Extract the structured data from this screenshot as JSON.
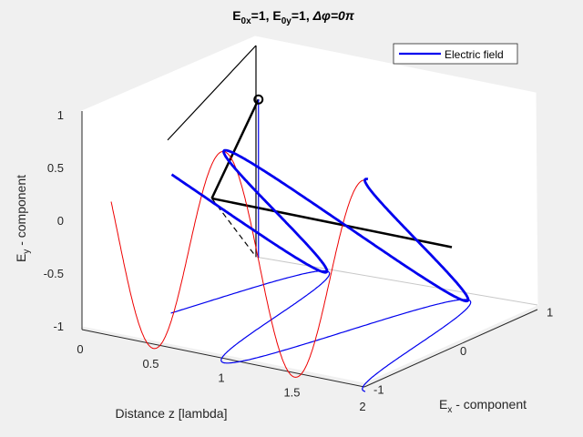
{
  "chart_data": {
    "type": "line",
    "projection": "3d",
    "title_parts": {
      "e0x": "E",
      "e0x_sub": "0x",
      "e0x_val": "=1, ",
      "e0y": "E",
      "e0y_sub": "0y",
      "e0y_val": "=1, ",
      "phase": "Δφ=0π"
    },
    "xlabel": "Distance z [lambda]",
    "ylabel": {
      "main": "E",
      "sub": "y",
      "rest": " - component"
    },
    "zlabel": {
      "main": "E",
      "sub": "x",
      "rest": " - component"
    },
    "z_ticks": [
      "0",
      "0.5",
      "1",
      "1.5",
      "2"
    ],
    "ex_ticks": [
      "-1",
      "0",
      "1"
    ],
    "ey_ticks": [
      "-1",
      "-0.5",
      "0",
      "0.5",
      "1"
    ],
    "z_range": [
      0,
      2
    ],
    "ex_range": [
      -1,
      1
    ],
    "ey_range": [
      -1,
      1
    ],
    "E0x": 1,
    "E0y": 1,
    "delta_phi": 0,
    "legend": {
      "label": "Electric field",
      "position": "top-right"
    },
    "colors": {
      "field": "#0000ee",
      "projection": "#ee0000",
      "frame": "#000000"
    }
  }
}
